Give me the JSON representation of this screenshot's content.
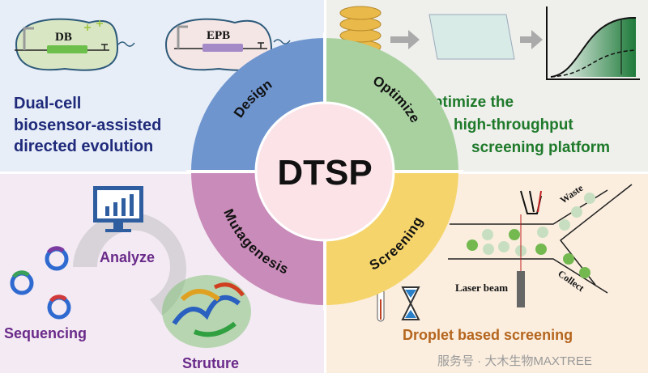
{
  "center": {
    "title": "DTSP"
  },
  "ring": {
    "segments": [
      {
        "label": "Design",
        "color": "#6f95cf"
      },
      {
        "label": "Optimize",
        "color": "#a9d1a0"
      },
      {
        "label": "Screening",
        "color": "#f5d46c"
      },
      {
        "label": "Mutagenesis",
        "color": "#c98bb9"
      }
    ]
  },
  "top_left": {
    "cell1_label": "DB",
    "cell2_label": "EPB",
    "caption_lines": [
      "Dual-cell",
      "biosensor-assisted",
      "directed evolution"
    ],
    "caption_color": "#1f2a7a"
  },
  "top_right": {
    "caption_lines": [
      "Optimize the",
      "high-throughput",
      "screening platform"
    ],
    "caption_color": "#1e7a2a"
  },
  "bottom_left": {
    "analyze": "Analyze",
    "sequencing": "Sequencing",
    "structure": "Struture",
    "label_color": "#6a2a8a"
  },
  "bottom_right": {
    "waste": "Waste",
    "collect": "Collect",
    "laser": "Laser beam",
    "caption": "Droplet based screening",
    "caption_color": "#b5651d"
  },
  "watermark": "服务号 · 大木生物MAXTREE"
}
